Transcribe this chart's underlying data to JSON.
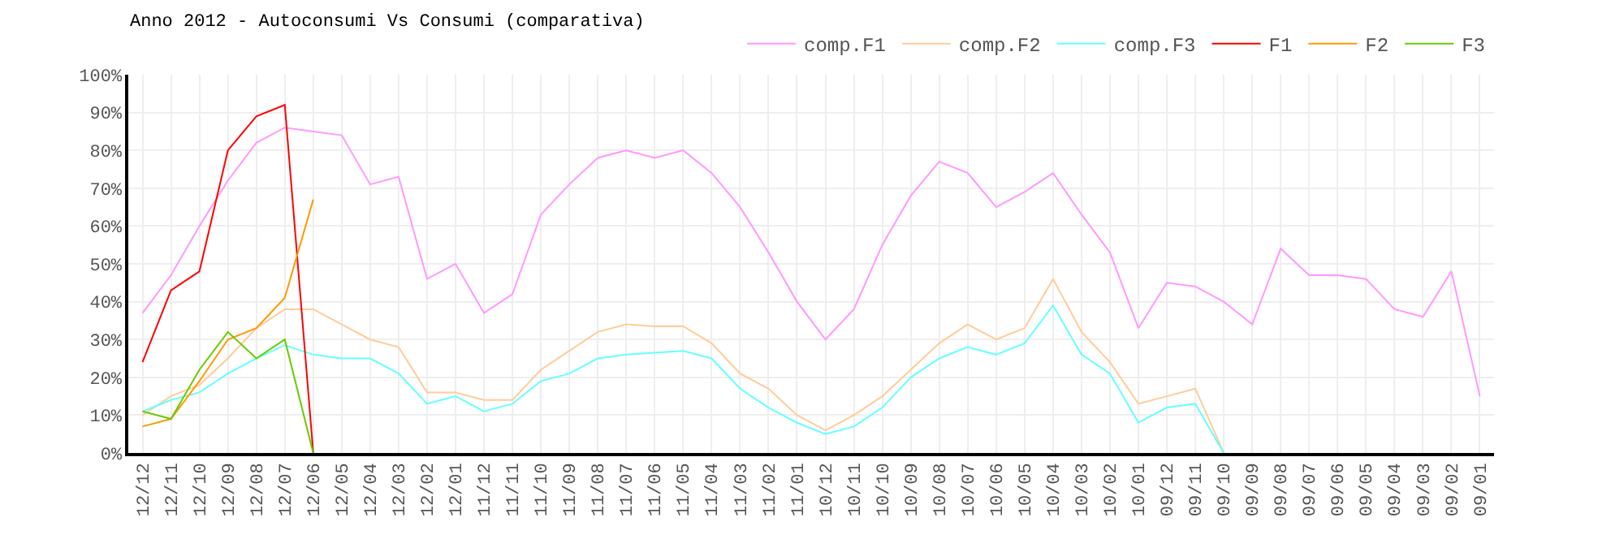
{
  "chart_data": {
    "type": "line",
    "title": "Anno 2012 - Autoconsumi Vs Consumi (comparativa)",
    "categories": [
      "12/12",
      "12/11",
      "12/10",
      "12/09",
      "12/08",
      "12/07",
      "12/06",
      "12/05",
      "12/04",
      "12/03",
      "12/02",
      "12/01",
      "11/12",
      "11/11",
      "11/10",
      "11/09",
      "11/08",
      "11/07",
      "11/06",
      "11/05",
      "11/04",
      "11/03",
      "11/02",
      "11/01",
      "10/12",
      "10/11",
      "10/10",
      "10/09",
      "10/08",
      "10/07",
      "10/06",
      "10/05",
      "10/04",
      "10/03",
      "10/02",
      "10/01",
      "09/12",
      "09/11",
      "09/10",
      "09/09",
      "09/08",
      "09/07",
      "09/06",
      "09/05",
      "09/04",
      "09/03",
      "09/02",
      "09/01"
    ],
    "series": [
      {
        "name": "comp.F1",
        "color": "#ff99ff",
        "values": [
          37,
          47,
          60,
          72,
          82,
          86,
          85,
          84,
          71,
          73,
          46,
          50,
          37,
          42,
          63,
          71,
          78,
          80,
          78,
          80,
          74,
          65,
          53,
          40,
          30,
          38,
          55,
          68,
          77,
          74,
          65,
          69,
          74,
          63,
          53,
          33,
          45,
          44,
          40,
          34,
          54,
          47,
          47,
          46,
          38,
          36,
          48,
          15
        ]
      },
      {
        "name": "comp.F2",
        "color": "#ffcc99",
        "values": [
          10,
          15,
          18,
          25,
          33,
          38,
          38,
          34,
          30,
          28,
          16,
          16,
          14,
          14,
          22,
          27,
          32,
          34,
          33.5,
          33.5,
          29,
          21,
          17,
          10,
          6,
          10,
          15,
          22,
          29,
          34,
          30,
          33,
          46,
          32,
          24,
          13,
          15,
          17,
          0,
          null,
          null,
          null,
          null,
          null,
          null,
          null,
          null,
          null
        ]
      },
      {
        "name": "comp.F3",
        "color": "#66ffff",
        "values": [
          11,
          14,
          16,
          21,
          25,
          28.5,
          26,
          25,
          25,
          21,
          13,
          15,
          11,
          13,
          19,
          21,
          25,
          26,
          26.5,
          27,
          25,
          17,
          12,
          8,
          5,
          7,
          12,
          20,
          25,
          28,
          26,
          29,
          39,
          26,
          21,
          8,
          12,
          13,
          0,
          null,
          null,
          null,
          null,
          null,
          null,
          null,
          null,
          null
        ]
      },
      {
        "name": "F1",
        "color": "#ff0000",
        "values": [
          24,
          43,
          48,
          80,
          89,
          92,
          0,
          null,
          null,
          null,
          null,
          null,
          null,
          null,
          null,
          null,
          null,
          null,
          null,
          null,
          null,
          null,
          null,
          null,
          null,
          null,
          null,
          null,
          null,
          null,
          null,
          null,
          null,
          null,
          null,
          null,
          null,
          null,
          null,
          null,
          null,
          null,
          null,
          null,
          null,
          null,
          null,
          null
        ]
      },
      {
        "name": "F2",
        "color": "#ff9900",
        "values": [
          7,
          9,
          19,
          30,
          33,
          41,
          67,
          null,
          null,
          null,
          null,
          null,
          null,
          null,
          null,
          null,
          null,
          null,
          null,
          null,
          null,
          null,
          null,
          null,
          null,
          null,
          null,
          null,
          null,
          null,
          null,
          null,
          null,
          null,
          null,
          null,
          null,
          null,
          null,
          null,
          null,
          null,
          null,
          null,
          null,
          null,
          null,
          null
        ]
      },
      {
        "name": "F3",
        "color": "#66cc00",
        "values": [
          11,
          9,
          22,
          32,
          25,
          30,
          0,
          null,
          null,
          null,
          null,
          null,
          null,
          null,
          null,
          null,
          null,
          null,
          null,
          null,
          null,
          null,
          null,
          null,
          null,
          null,
          null,
          null,
          null,
          null,
          null,
          null,
          null,
          null,
          null,
          null,
          null,
          null,
          null,
          null,
          null,
          null,
          null,
          null,
          null,
          null,
          null,
          null
        ]
      }
    ],
    "ylim": [
      0,
      100
    ],
    "yticks": [
      {
        "value": 0,
        "label": "0%"
      },
      {
        "value": 10,
        "label": "10%"
      },
      {
        "value": 20,
        "label": "20%"
      },
      {
        "value": 30,
        "label": "30%"
      },
      {
        "value": 40,
        "label": "40%"
      },
      {
        "value": 50,
        "label": "50%"
      },
      {
        "value": 60,
        "label": "60%"
      },
      {
        "value": 70,
        "label": "70%"
      },
      {
        "value": 80,
        "label": "80%"
      },
      {
        "value": 90,
        "label": "90%"
      },
      {
        "value": 100,
        "label": "100%"
      }
    ],
    "grid": true,
    "legend": "top right",
    "marker": "none",
    "line_style": "solid"
  }
}
